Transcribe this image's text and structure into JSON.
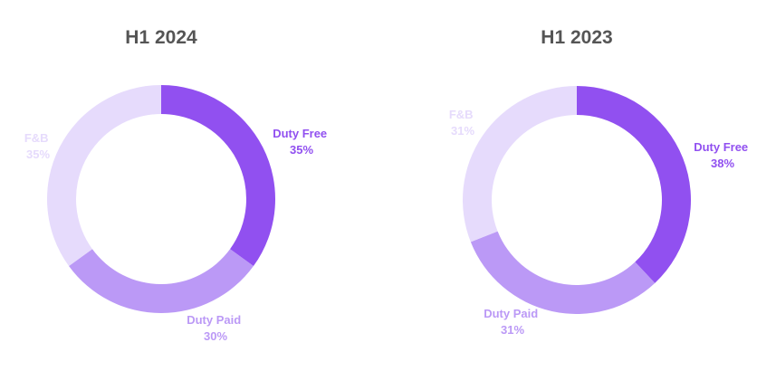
{
  "colors": {
    "duty_free": "#9150f0",
    "duty_paid": "#bb99f6",
    "fnb": "#e6dbfc",
    "title": "#555555"
  },
  "chart_data": [
    {
      "type": "pie",
      "donut": true,
      "title": "H1 2024",
      "slices": [
        {
          "label": "Duty Free",
          "value": 35,
          "value_label": "35%",
          "color": "#9150f0"
        },
        {
          "label": "Duty Paid",
          "value": 30,
          "value_label": "30%",
          "color": "#bb99f6"
        },
        {
          "label": "F&B",
          "value": 35,
          "value_label": "35%",
          "color": "#e6dbfc"
        }
      ]
    },
    {
      "type": "pie",
      "donut": true,
      "title": "H1 2023",
      "slices": [
        {
          "label": "Duty Free",
          "value": 38,
          "value_label": "38%",
          "color": "#9150f0"
        },
        {
          "label": "Duty Paid",
          "value": 31,
          "value_label": "31%",
          "color": "#bb99f6"
        },
        {
          "label": "F&B",
          "value": 31,
          "value_label": "31%",
          "color": "#e6dbfc"
        }
      ]
    }
  ]
}
